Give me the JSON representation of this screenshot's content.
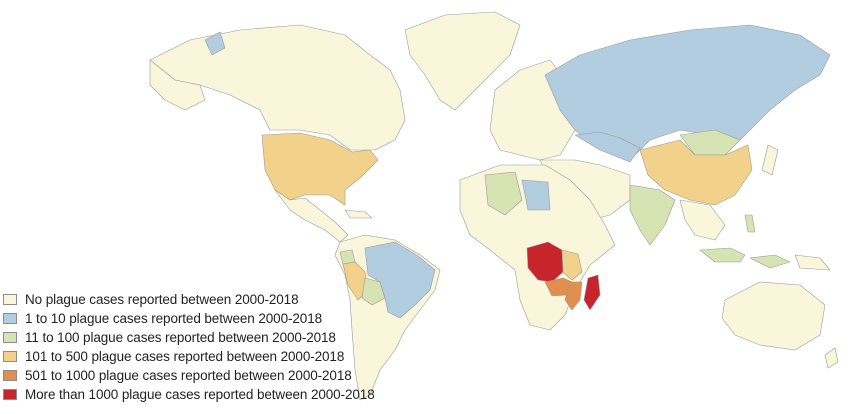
{
  "legend": [
    {
      "key": "none",
      "label": "No plague cases reported between 2000-2018",
      "color": "#faf6dc"
    },
    {
      "key": "1-10",
      "label": "1 to 10 plague cases reported between 2000-2018",
      "color": "#b3cde0"
    },
    {
      "key": "11-100",
      "label": "11 to 100 plague cases reported between 2000-2018",
      "color": "#d6e3b3"
    },
    {
      "key": "101-500",
      "label": "101 to 500 plague cases reported between 2000-2018",
      "color": "#f2d28a"
    },
    {
      "key": "501-1000",
      "label": "501 to 1000 plague cases reported between 2000-2018",
      "color": "#e08f4e"
    },
    {
      "key": "1000+",
      "label": "More than 1000 plague cases reported between 2000-2018",
      "color": "#c8242b"
    }
  ],
  "regions": [
    {
      "name": "North America (other)",
      "category": "none"
    },
    {
      "name": "Greenland",
      "category": "none"
    },
    {
      "name": "United States",
      "category": "101-500"
    },
    {
      "name": "Mexico & Central America",
      "category": "none"
    },
    {
      "name": "South America (other)",
      "category": "none"
    },
    {
      "name": "Peru",
      "category": "101-500"
    },
    {
      "name": "Bolivia",
      "category": "11-100"
    },
    {
      "name": "Ecuador",
      "category": "11-100"
    },
    {
      "name": "Brazil",
      "category": "1-10"
    },
    {
      "name": "Europe",
      "category": "none"
    },
    {
      "name": "Russia",
      "category": "1-10"
    },
    {
      "name": "Kazakhstan",
      "category": "1-10"
    },
    {
      "name": "Mongolia",
      "category": "11-100"
    },
    {
      "name": "China",
      "category": "101-500"
    },
    {
      "name": "India",
      "category": "11-100"
    },
    {
      "name": "Algeria",
      "category": "11-100"
    },
    {
      "name": "Libya",
      "category": "1-10"
    },
    {
      "name": "Africa (other)",
      "category": "none"
    },
    {
      "name": "DR Congo",
      "category": "1000+"
    },
    {
      "name": "Uganda / Tanzania",
      "category": "101-500"
    },
    {
      "name": "Zambia / Malawi",
      "category": "501-1000"
    },
    {
      "name": "Mozambique",
      "category": "501-1000"
    },
    {
      "name": "Madagascar",
      "category": "1000+"
    },
    {
      "name": "Indonesia",
      "category": "11-100"
    },
    {
      "name": "Australia",
      "category": "none"
    }
  ]
}
